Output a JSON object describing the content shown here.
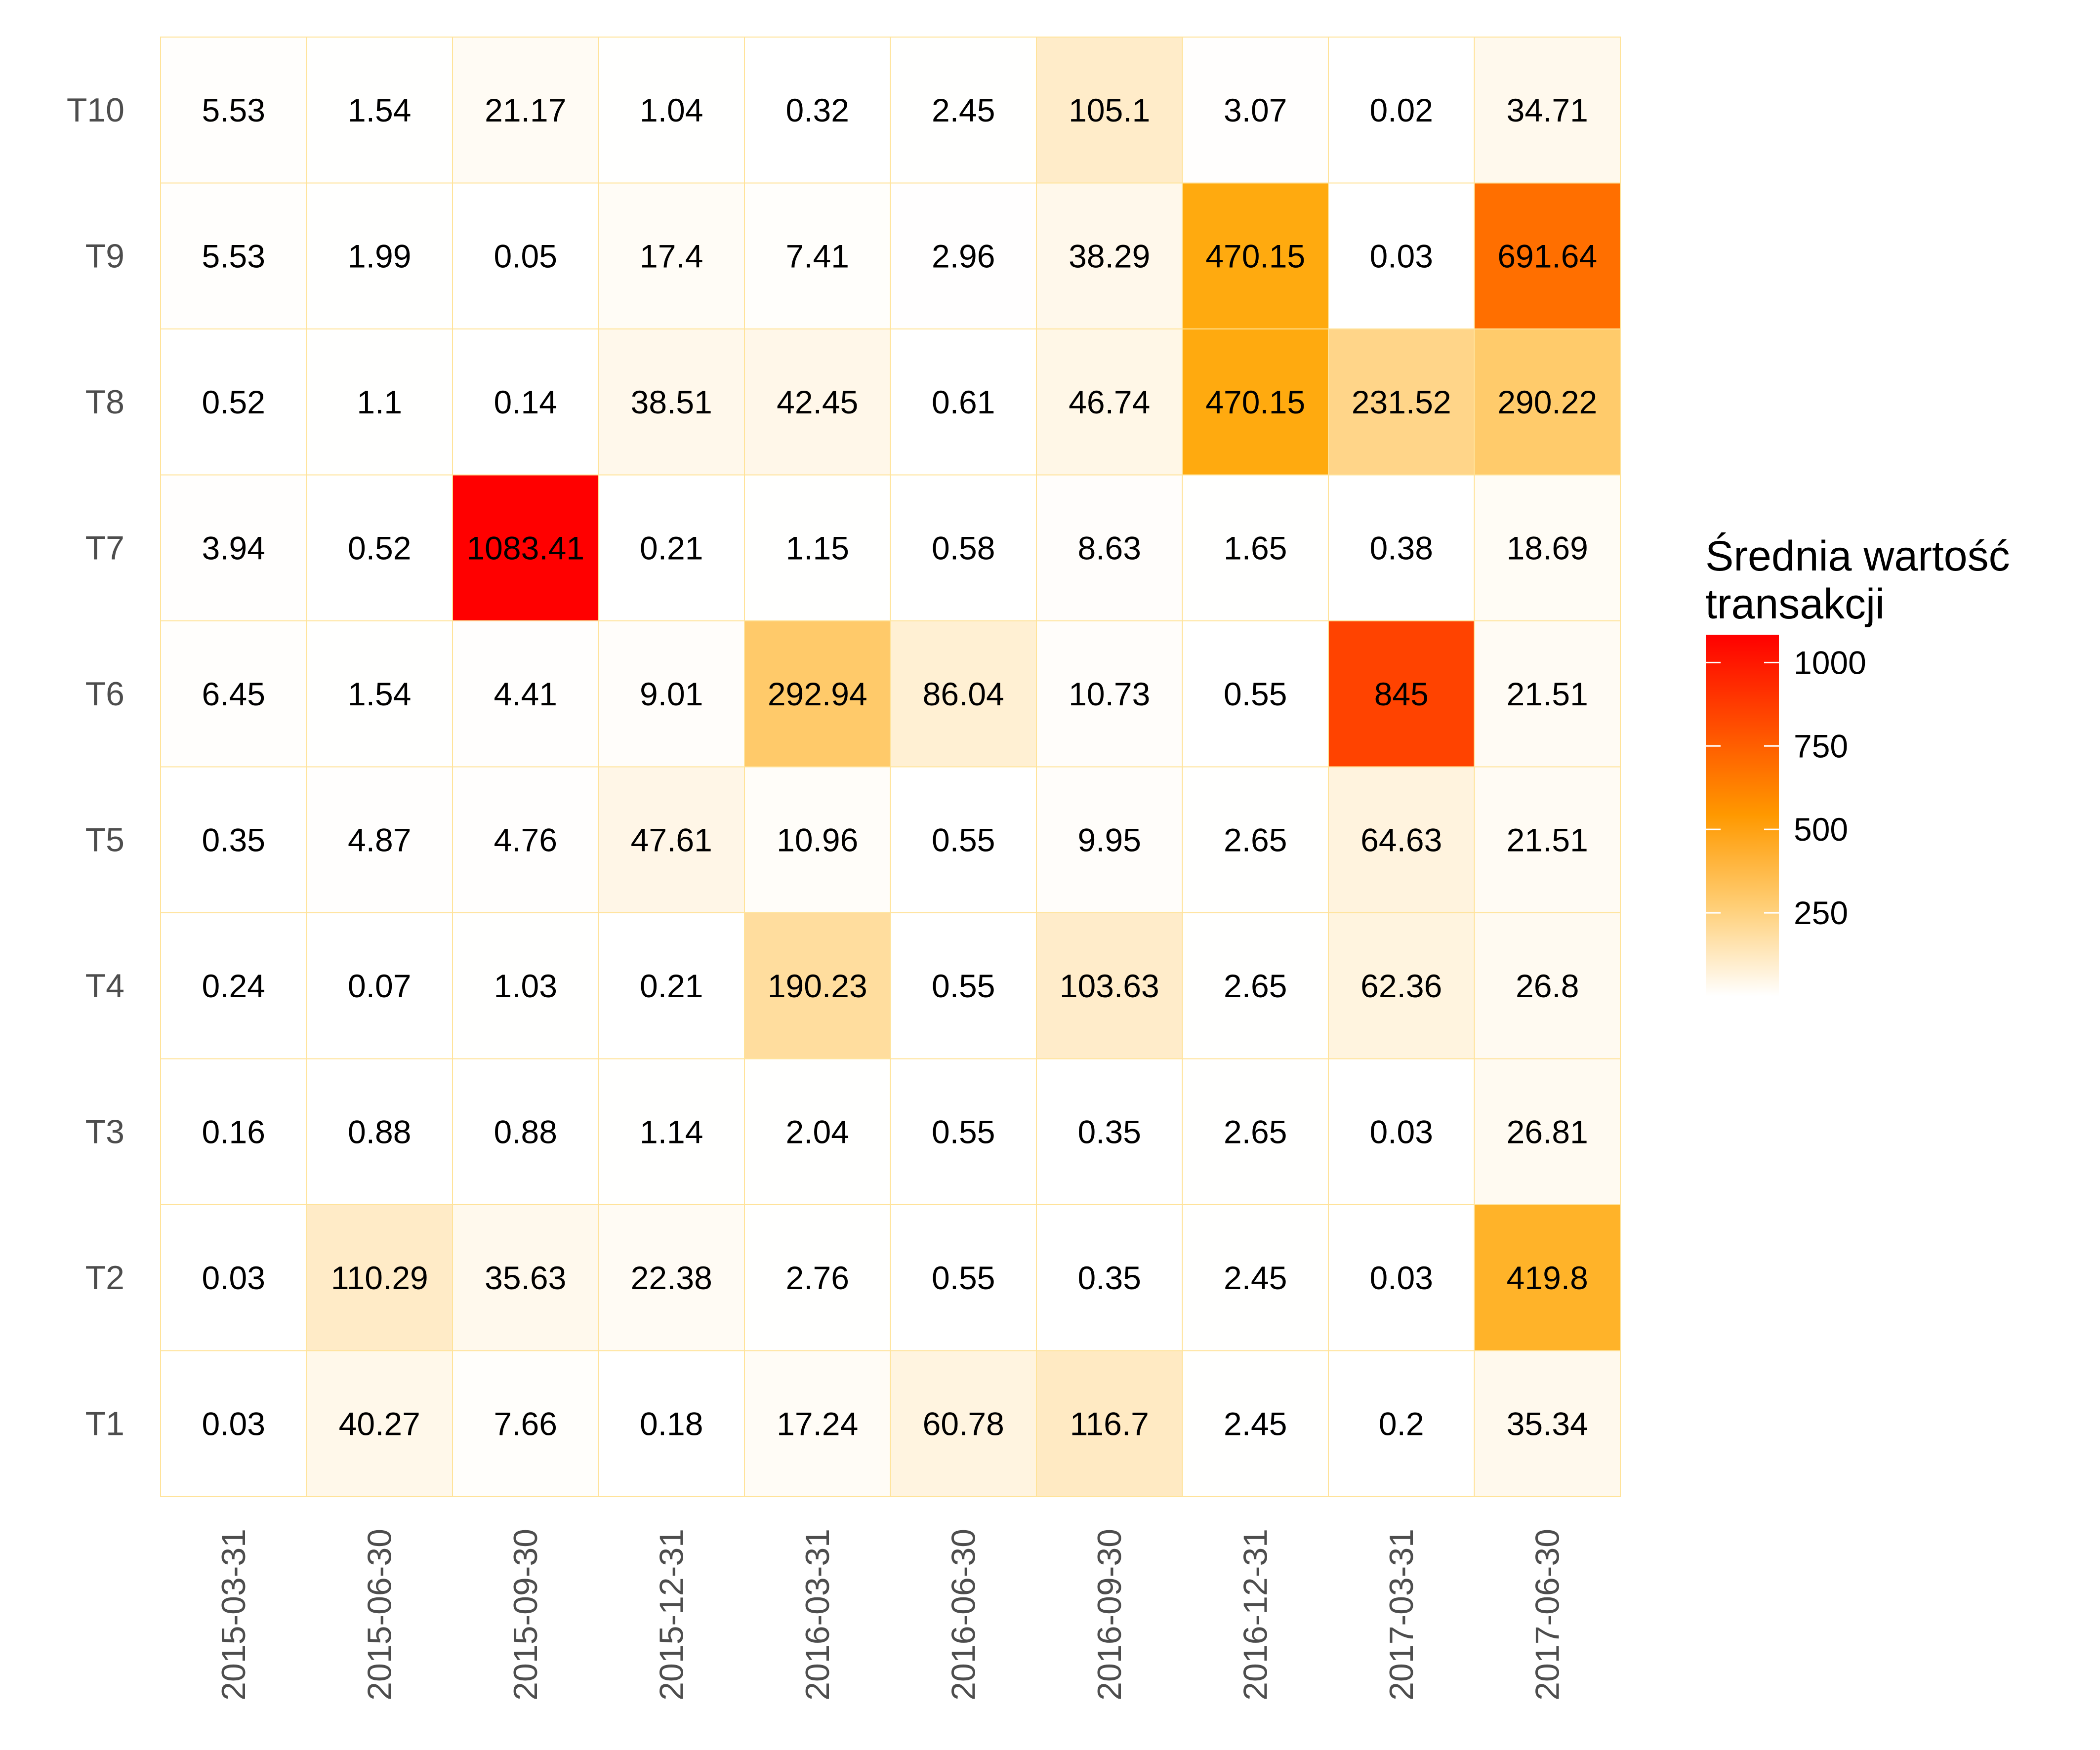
{
  "chart_data": {
    "type": "heatmap",
    "title": "",
    "xlabel": "",
    "ylabel": "",
    "x_categories": [
      "2015-03-31",
      "2015-06-30",
      "2015-09-30",
      "2015-12-31",
      "2016-03-31",
      "2016-06-30",
      "2016-09-30",
      "2016-12-31",
      "2017-03-31",
      "2017-06-30"
    ],
    "y_categories": [
      "T10",
      "T9",
      "T8",
      "T7",
      "T6",
      "T5",
      "T4",
      "T3",
      "T2",
      "T1"
    ],
    "values": [
      [
        5.53,
        1.54,
        21.17,
        1.04,
        0.32,
        2.45,
        105.1,
        3.07,
        0.02,
        34.71
      ],
      [
        5.53,
        1.99,
        0.05,
        17.4,
        7.41,
        2.96,
        38.29,
        470.15,
        0.03,
        691.64
      ],
      [
        0.52,
        1.1,
        0.14,
        38.51,
        42.45,
        0.61,
        46.74,
        470.15,
        231.52,
        290.22
      ],
      [
        3.94,
        0.52,
        1083.41,
        0.21,
        1.15,
        0.58,
        8.63,
        1.65,
        0.38,
        18.69
      ],
      [
        6.45,
        1.54,
        4.41,
        9.01,
        292.94,
        86.04,
        10.73,
        0.55,
        845,
        21.51
      ],
      [
        0.35,
        4.87,
        4.76,
        47.61,
        10.96,
        0.55,
        9.95,
        2.65,
        64.63,
        21.51
      ],
      [
        0.24,
        0.07,
        1.03,
        0.21,
        190.23,
        0.55,
        103.63,
        2.65,
        62.36,
        26.8
      ],
      [
        0.16,
        0.88,
        0.88,
        1.14,
        2.04,
        0.55,
        0.35,
        2.65,
        0.03,
        26.81
      ],
      [
        0.03,
        110.29,
        35.63,
        22.38,
        2.76,
        0.55,
        0.35,
        2.45,
        0.03,
        419.8
      ],
      [
        0.03,
        40.27,
        7.66,
        0.18,
        17.24,
        60.78,
        116.7,
        2.45,
        0.2,
        35.34
      ]
    ],
    "value_labels": [
      [
        "5.53",
        "1.54",
        "21.17",
        "1.04",
        "0.32",
        "2.45",
        "105.1",
        "3.07",
        "0.02",
        "34.71"
      ],
      [
        "5.53",
        "1.99",
        "0.05",
        "17.4",
        "7.41",
        "2.96",
        "38.29",
        "470.15",
        "0.03",
        "691.64"
      ],
      [
        "0.52",
        "1.1",
        "0.14",
        "38.51",
        "42.45",
        "0.61",
        "46.74",
        "470.15",
        "231.52",
        "290.22"
      ],
      [
        "3.94",
        "0.52",
        "1083.41",
        "0.21",
        "1.15",
        "0.58",
        "8.63",
        "1.65",
        "0.38",
        "18.69"
      ],
      [
        "6.45",
        "1.54",
        "4.41",
        "9.01",
        "292.94",
        "86.04",
        "10.73",
        "0.55",
        "845",
        "21.51"
      ],
      [
        "0.35",
        "4.87",
        "4.76",
        "47.61",
        "10.96",
        "0.55",
        "9.95",
        "2.65",
        "64.63",
        "21.51"
      ],
      [
        "0.24",
        "0.07",
        "1.03",
        "0.21",
        "190.23",
        "0.55",
        "103.63",
        "2.65",
        "62.36",
        "26.8"
      ],
      [
        "0.16",
        "0.88",
        "0.88",
        "1.14",
        "2.04",
        "0.55",
        "0.35",
        "2.65",
        "0.03",
        "26.81"
      ],
      [
        "0.03",
        "110.29",
        "35.63",
        "22.38",
        "2.76",
        "0.55",
        "0.35",
        "2.45",
        "0.03",
        "419.8"
      ],
      [
        "0.03",
        "40.27",
        "7.66",
        "0.18",
        "17.24",
        "60.78",
        "116.7",
        "2.45",
        "0.2",
        "35.34"
      ]
    ],
    "legend": {
      "title_lines": [
        "Średnia wartość",
        "transakcji"
      ],
      "ticks": [
        250,
        500,
        750,
        1000
      ],
      "tick_labels": [
        "250",
        "500",
        "750",
        "1000"
      ],
      "range": [
        0.02,
        1083.41
      ],
      "placement": "right"
    },
    "color_scale": {
      "low": "#ffffff",
      "mid": "#ffa500",
      "high": "#ff0000",
      "midpoint": 500
    },
    "grid_color": "#ffe39a"
  }
}
